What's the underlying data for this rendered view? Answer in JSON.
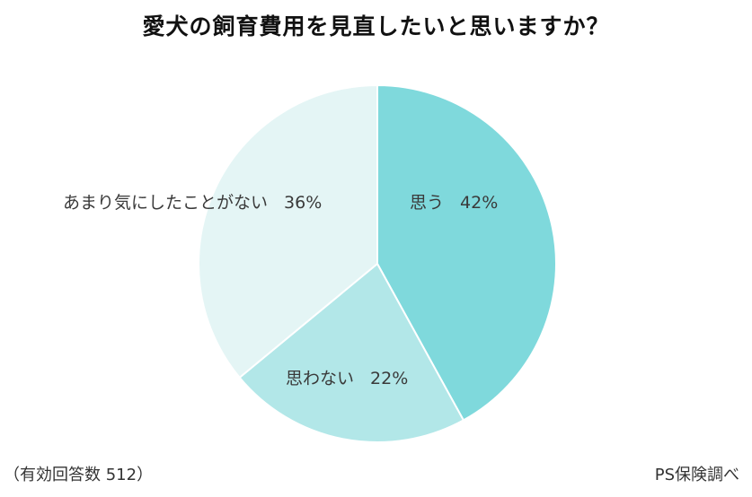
{
  "chart_data": {
    "type": "pie",
    "title": "愛犬の飼育費用を見直したいと思いますか？",
    "slices": [
      {
        "label": "思う",
        "value": 42,
        "value_label": "42%",
        "color": "#7fd9dc"
      },
      {
        "label": "思わない",
        "value": 22,
        "value_label": "22%",
        "color": "#b2e7e8"
      },
      {
        "label": "あまり気にしたことがない",
        "value": 36,
        "value_label": "36%",
        "color": "#e4f5f5"
      }
    ],
    "start": "top (12 o'clock)",
    "direction": "clockwise",
    "legend": "none (labels inside slices)"
  },
  "footer": {
    "sample_note": "（有効回答数 512）",
    "source": "PS保険調べ"
  }
}
